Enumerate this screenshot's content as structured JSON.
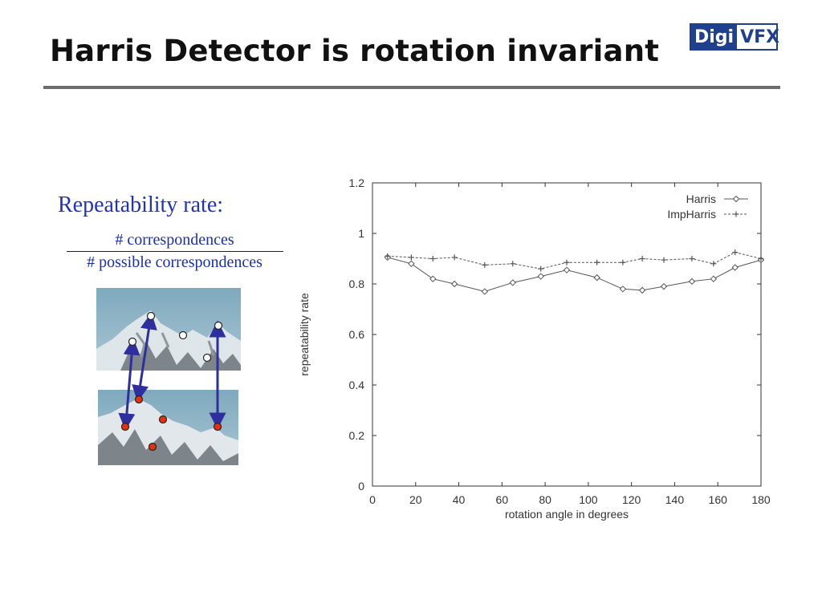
{
  "slide": {
    "title": "Harris Detector is rotation invariant",
    "logo": {
      "part1": "Digi",
      "part2": "VFX"
    }
  },
  "repeatability": {
    "label": "Repeatability rate:",
    "numerator": "# correspondences",
    "denominator": "# possible correspondences"
  },
  "colors": {
    "title": "#111111",
    "accent_text": "#2233bb",
    "logo_blue": "#1f3f8f",
    "arrow": "#2e2e9e",
    "detected_point": "#e83010",
    "reference_point": "#ffffff"
  },
  "illustration": {
    "icons": [
      "mountain-photo-original",
      "mountain-photo-rotated",
      "correspondence-arrow"
    ]
  },
  "chart_data": {
    "type": "line",
    "title": "",
    "xlabel": "rotation angle in degrees",
    "ylabel": "repeatability rate",
    "xlim": [
      0,
      180
    ],
    "ylim": [
      0,
      1.2
    ],
    "xticks": [
      0,
      20,
      40,
      60,
      80,
      100,
      120,
      140,
      160,
      180
    ],
    "yticks": [
      0,
      0.2,
      0.4,
      0.6,
      0.8,
      1,
      1.2
    ],
    "ytick_labels": [
      "0",
      "0.2",
      "0.4",
      "0.6",
      "0.8",
      "1",
      "1.2"
    ],
    "grid": false,
    "legend": "top-right",
    "series": [
      {
        "name": "Harris",
        "style": "solid",
        "marker": "diamond",
        "x": [
          7,
          18,
          28,
          38,
          52,
          65,
          78,
          90,
          104,
          116,
          125,
          135,
          148,
          158,
          168,
          180
        ],
        "y": [
          0.905,
          0.88,
          0.82,
          0.8,
          0.77,
          0.805,
          0.83,
          0.855,
          0.825,
          0.78,
          0.775,
          0.79,
          0.81,
          0.82,
          0.865,
          0.895
        ]
      },
      {
        "name": "ImpHarris",
        "style": "dashed",
        "marker": "plus",
        "x": [
          7,
          18,
          28,
          38,
          52,
          65,
          78,
          90,
          104,
          116,
          125,
          135,
          148,
          158,
          168,
          180
        ],
        "y": [
          0.91,
          0.905,
          0.9,
          0.905,
          0.875,
          0.88,
          0.86,
          0.885,
          0.885,
          0.885,
          0.9,
          0.895,
          0.9,
          0.88,
          0.925,
          0.9
        ]
      }
    ]
  }
}
